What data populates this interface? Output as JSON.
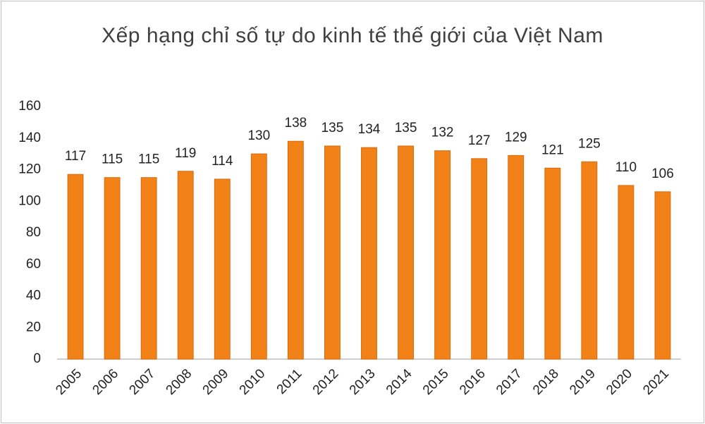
{
  "chart_data": {
    "type": "bar",
    "title": "Xếp hạng chỉ số tự do kinh tế thế giới của Việt Nam",
    "categories": [
      "2005",
      "2006",
      "2007",
      "2008",
      "2009",
      "2010",
      "2011",
      "2012",
      "2013",
      "2014",
      "2015",
      "2016",
      "2017",
      "2018",
      "2019",
      "2020",
      "2021"
    ],
    "values": [
      117,
      115,
      115,
      119,
      114,
      130,
      138,
      135,
      134,
      135,
      132,
      127,
      129,
      121,
      125,
      110,
      106
    ],
    "color": "#f28118",
    "ylim": [
      0,
      160
    ],
    "yticks": [
      0,
      20,
      40,
      60,
      80,
      100,
      120,
      140,
      160
    ]
  }
}
